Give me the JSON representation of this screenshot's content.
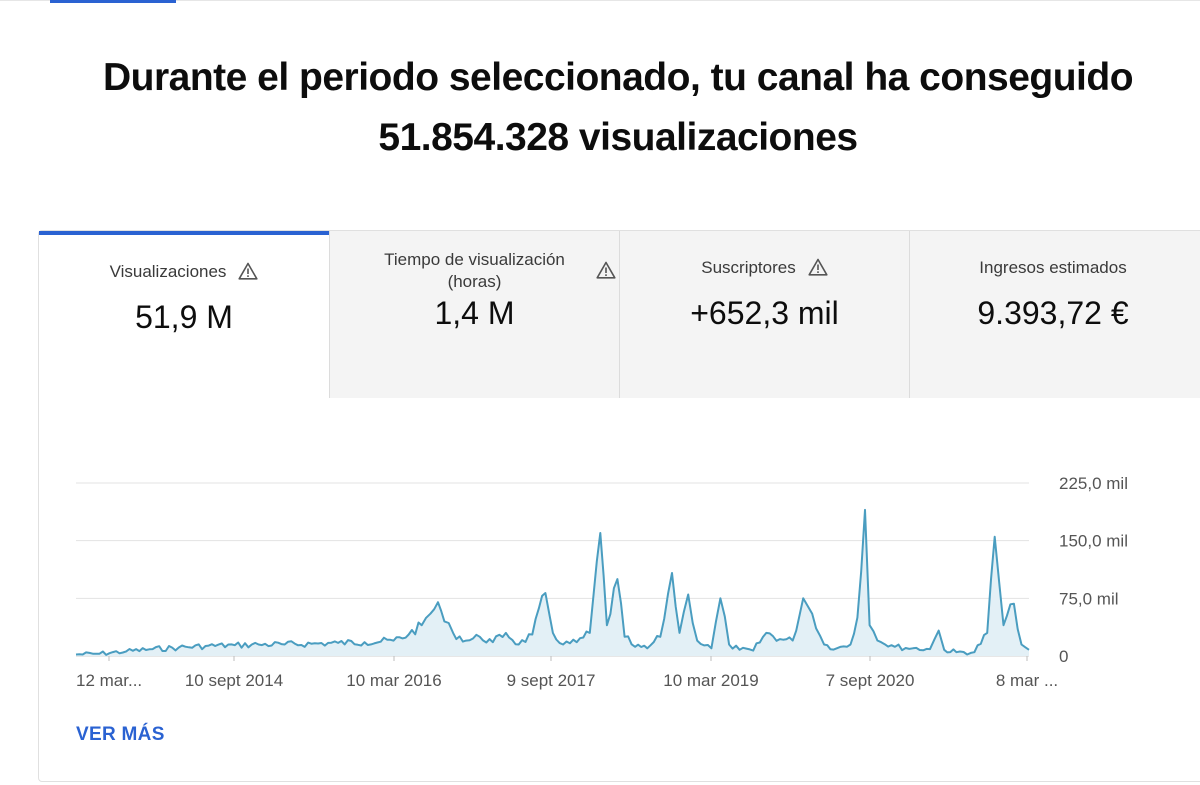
{
  "headline": {
    "line1": "Durante el periodo seleccionado, tu canal ha conseguido",
    "line2": "51.854.328 visualizaciones"
  },
  "tabs": [
    {
      "label": "Visualizaciones",
      "value": "51,9 M",
      "warning": true,
      "active": true
    },
    {
      "label_line1": "Tiempo de visualización",
      "label_line2": "(horas)",
      "value": "1,4 M",
      "warning": true,
      "active": false
    },
    {
      "label": "Suscriptores",
      "value": "+652,3 mil",
      "warning": true,
      "active": false
    },
    {
      "label": "Ingresos estimados",
      "value": "9.393,72 €",
      "warning": false,
      "active": false
    }
  ],
  "icons": {
    "warning": "warning-triangle-icon"
  },
  "colors": {
    "accent": "#2a62d2",
    "series_line": "#4a9dc0",
    "series_fill": "#e3f0f6"
  },
  "chart_data": {
    "type": "area",
    "x_tick_labels": [
      "12 mar...",
      "10 sept 2014",
      "10 mar 2016",
      "9 sept 2017",
      "10 mar 2019",
      "7 sept 2020",
      "8 mar ..."
    ],
    "y_tick_labels": [
      "0",
      "75,0 mil",
      "150,0 mil",
      "225,0 mil"
    ],
    "y_ticks": [
      0,
      75000,
      150000,
      225000
    ],
    "ylim": [
      0,
      225000
    ],
    "grid": true,
    "x_start": "2013-03-12",
    "x_end": "2022-03-08",
    "series": [
      {
        "values": [
          [
            "2013-03-12",
            2000
          ],
          [
            "2013-06-01",
            3000
          ],
          [
            "2013-09-01",
            6000
          ],
          [
            "2013-12-01",
            9000
          ],
          [
            "2014-03-01",
            11000
          ],
          [
            "2014-06-01",
            13000
          ],
          [
            "2014-09-10",
            14000
          ],
          [
            "2014-12-01",
            15000
          ],
          [
            "2015-03-01",
            15000
          ],
          [
            "2015-06-01",
            16000
          ],
          [
            "2015-09-01",
            17000
          ],
          [
            "2015-12-01",
            18000
          ],
          [
            "2016-03-10",
            20000
          ],
          [
            "2016-05-01",
            28000
          ],
          [
            "2016-06-15",
            40000
          ],
          [
            "2016-07-15",
            55000
          ],
          [
            "2016-08-10",
            70000
          ],
          [
            "2016-09-01",
            45000
          ],
          [
            "2016-10-01",
            30000
          ],
          [
            "2016-11-15",
            20000
          ],
          [
            "2017-01-01",
            25000
          ],
          [
            "2017-02-15",
            18000
          ],
          [
            "2017-04-01",
            30000
          ],
          [
            "2017-05-15",
            15000
          ],
          [
            "2017-07-01",
            28000
          ],
          [
            "2017-08-15",
            82000
          ],
          [
            "2017-09-10",
            30000
          ],
          [
            "2017-10-15",
            15000
          ],
          [
            "2017-12-01",
            18000
          ],
          [
            "2018-01-15",
            30000
          ],
          [
            "2018-02-20",
            160000
          ],
          [
            "2018-03-15",
            40000
          ],
          [
            "2018-04-20",
            100000
          ],
          [
            "2018-05-15",
            25000
          ],
          [
            "2018-06-20",
            12000
          ],
          [
            "2018-08-01",
            10000
          ],
          [
            "2018-09-15",
            25000
          ],
          [
            "2018-10-25",
            108000
          ],
          [
            "2018-11-20",
            30000
          ],
          [
            "2018-12-20",
            80000
          ],
          [
            "2019-01-20",
            20000
          ],
          [
            "2019-03-10",
            10000
          ],
          [
            "2019-04-10",
            75000
          ],
          [
            "2019-05-10",
            15000
          ],
          [
            "2019-06-15",
            8000
          ],
          [
            "2019-08-01",
            7000
          ],
          [
            "2019-09-15",
            30000
          ],
          [
            "2019-11-01",
            22000
          ],
          [
            "2019-12-15",
            20000
          ],
          [
            "2020-01-20",
            75000
          ],
          [
            "2020-02-20",
            55000
          ],
          [
            "2020-04-01",
            15000
          ],
          [
            "2020-05-15",
            10000
          ],
          [
            "2020-07-01",
            15000
          ],
          [
            "2020-07-25",
            50000
          ],
          [
            "2020-08-20",
            190000
          ],
          [
            "2020-09-05",
            40000
          ],
          [
            "2020-10-15",
            18000
          ],
          [
            "2020-12-01",
            12000
          ],
          [
            "2021-02-01",
            10000
          ],
          [
            "2021-04-01",
            9000
          ],
          [
            "2021-05-01",
            33000
          ],
          [
            "2021-05-20",
            8000
          ],
          [
            "2021-07-01",
            5000
          ],
          [
            "2021-09-01",
            5000
          ],
          [
            "2021-10-15",
            30000
          ],
          [
            "2021-11-10",
            155000
          ],
          [
            "2021-12-10",
            40000
          ],
          [
            "2022-01-15",
            68000
          ],
          [
            "2022-02-10",
            15000
          ],
          [
            "2022-03-08",
            8000
          ]
        ]
      }
    ]
  },
  "footer": {
    "ver_mas": "VER MÁS"
  }
}
